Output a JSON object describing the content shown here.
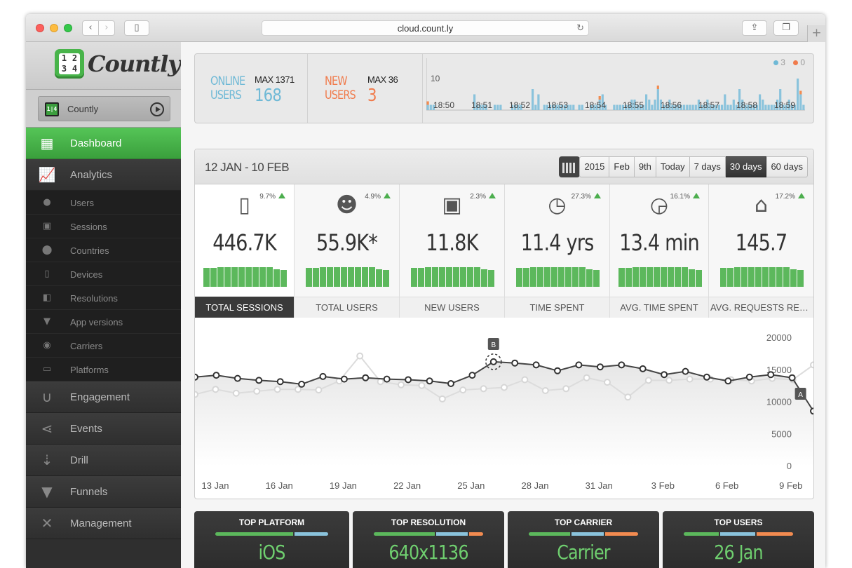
{
  "browser": {
    "url": "cloud.count.ly"
  },
  "sidebar": {
    "logo_text": "Countly",
    "logo_digits": [
      "1",
      "2",
      "3",
      "4"
    ],
    "app_name": "Countly",
    "nav": [
      {
        "label": "Dashboard",
        "icon": "dashboard-icon",
        "active": true
      },
      {
        "label": "Analytics",
        "icon": "analytics-icon"
      },
      {
        "label": "Users",
        "icon": "user-icon",
        "sub": true
      },
      {
        "label": "Sessions",
        "icon": "session-icon",
        "sub": true
      },
      {
        "label": "Countries",
        "icon": "map-pin-icon",
        "sub": true
      },
      {
        "label": "Devices",
        "icon": "device-icon",
        "sub": true
      },
      {
        "label": "Resolutions",
        "icon": "resolution-icon",
        "sub": true
      },
      {
        "label": "App versions",
        "icon": "app-version-icon",
        "sub": true
      },
      {
        "label": "Carriers",
        "icon": "antenna-icon",
        "sub": true
      },
      {
        "label": "Platforms",
        "icon": "platform-icon",
        "sub": true
      },
      {
        "label": "Engagement",
        "icon": "magnet-icon"
      },
      {
        "label": "Events",
        "icon": "share-icon"
      },
      {
        "label": "Drill",
        "icon": "sort-icon"
      },
      {
        "label": "Funnels",
        "icon": "funnel-icon"
      },
      {
        "label": "Management",
        "icon": "tools-icon"
      }
    ]
  },
  "live": {
    "online_label_1": "ONLINE",
    "online_label_2": "USERS",
    "online_max": "MAX 1371",
    "online_value": "168",
    "new_label_1": "NEW",
    "new_label_2": "USERS",
    "new_max": "MAX 36",
    "new_value": "3",
    "legend_online": "3",
    "legend_new": "0",
    "y_tick": "10",
    "times": [
      "18:50",
      "18:51",
      "18:52",
      "18:53",
      "18:54",
      "18:55",
      "18:56",
      "18:57",
      "18:58",
      "18:59"
    ],
    "online_bars": [
      1,
      1,
      1,
      0,
      0,
      0,
      0,
      0,
      0,
      0,
      0,
      0,
      0,
      0,
      0,
      0,
      3,
      1,
      1,
      1,
      1,
      0,
      0,
      1,
      1,
      1,
      0,
      0,
      0,
      1,
      1,
      1,
      1,
      0,
      0,
      0,
      4,
      1,
      3,
      0,
      1,
      1,
      1,
      1,
      1,
      1,
      1,
      1,
      1,
      1,
      1,
      0,
      1,
      1,
      0,
      0,
      1,
      1,
      1,
      2,
      3,
      1,
      0,
      0,
      1,
      1,
      1,
      1,
      1,
      1,
      2,
      2,
      1,
      1,
      1,
      3,
      2,
      1,
      2,
      4,
      2,
      1,
      1,
      2,
      1,
      1,
      1,
      1,
      1,
      1,
      1,
      1,
      1,
      2,
      1,
      1,
      2,
      1,
      1,
      1,
      1,
      1,
      3,
      1,
      1,
      2,
      1,
      4,
      2,
      1,
      1,
      1,
      1,
      1,
      3,
      2,
      1,
      1,
      1,
      1,
      2,
      4,
      1,
      1,
      2,
      1,
      1,
      6,
      3,
      1
    ],
    "new_bars": [
      1,
      0,
      0,
      0,
      0,
      0,
      0,
      0,
      0,
      0,
      0,
      0,
      0,
      0,
      0,
      0,
      0,
      0,
      0,
      0,
      0,
      0,
      0,
      0,
      0,
      0,
      0,
      0,
      0,
      0,
      0,
      0,
      0,
      0,
      0,
      0,
      0,
      0,
      0,
      0,
      0,
      0,
      0,
      0,
      0,
      0,
      0,
      0,
      0,
      0,
      0,
      0,
      0,
      0,
      0,
      0,
      0,
      0,
      0,
      1,
      0,
      0,
      0,
      0,
      0,
      0,
      0,
      0,
      0,
      0,
      0,
      0,
      0,
      0,
      0,
      0,
      0,
      0,
      0,
      1,
      0,
      0,
      0,
      0,
      0,
      0,
      0,
      0,
      0,
      0,
      0,
      0,
      0,
      0,
      0,
      0,
      0,
      0,
      0,
      0,
      0,
      0,
      0,
      0,
      0,
      0,
      0,
      0,
      0,
      0,
      0,
      0,
      0,
      0,
      0,
      0,
      0,
      0,
      0,
      0,
      0,
      0,
      0,
      0,
      0,
      0,
      0,
      0,
      1,
      0
    ]
  },
  "panel": {
    "date_range": "12 JAN - 10 FEB",
    "periods": [
      "2015",
      "Feb",
      "9th",
      "Today",
      "7 days",
      "30 days",
      "60 days"
    ],
    "active_period": "30 days",
    "tiles": [
      {
        "label": "TOTAL SESSIONS",
        "value": "446.7K",
        "trend": "9.7%",
        "icon": "phone-icon",
        "active": true
      },
      {
        "label": "TOTAL USERS",
        "value": "55.9K*",
        "trend": "4.9%",
        "icon": "users-icon"
      },
      {
        "label": "NEW USERS",
        "value": "11.8K",
        "trend": "2.3%",
        "icon": "new-user-icon"
      },
      {
        "label": "TIME SPENT",
        "value": "11.4 yrs",
        "trend": "27.3%",
        "icon": "clock-icon"
      },
      {
        "label": "AVG. TIME SPENT",
        "value": "13.4 min",
        "trend": "16.1%",
        "icon": "clock-refresh-icon"
      },
      {
        "label": "AVG. REQUESTS RECEI...",
        "value": "145.7",
        "trend": "17.2%",
        "icon": "bell-icon"
      }
    ]
  },
  "chart_data": {
    "type": "line",
    "x_labels": [
      "13 Jan",
      "16 Jan",
      "19 Jan",
      "22 Jan",
      "25 Jan",
      "28 Jan",
      "31 Jan",
      "3 Feb",
      "6 Feb",
      "9 Feb"
    ],
    "y_ticks": [
      "20000",
      "15000",
      "10000",
      "5000",
      "0"
    ],
    "ylim": [
      0,
      20000
    ],
    "grid": false,
    "markers": [
      "A",
      "B"
    ],
    "series": [
      {
        "values": [
          13900,
          14200,
          13700,
          13400,
          13200,
          12800,
          14000,
          13600,
          13800,
          13600,
          13500,
          13300,
          12900,
          14200,
          16300,
          16100,
          15800,
          14900,
          15800,
          15500,
          15800,
          15200,
          14300,
          14800,
          13900,
          13300,
          13900,
          14300,
          13800,
          8600
        ]
      },
      {
        "values": [
          11200,
          12000,
          11400,
          11700,
          12000,
          12000,
          11900,
          13300,
          17200,
          13200,
          12700,
          12600,
          10500,
          11900,
          12100,
          12300,
          13500,
          11800,
          12100,
          13800,
          13100,
          10800,
          13400,
          13400,
          13600,
          13600,
          13500,
          13300,
          13700,
          13500,
          15800
        ]
      }
    ]
  },
  "bottom": [
    {
      "title": "TOP PLATFORM",
      "value": "iOS",
      "segments": [
        70,
        30
      ]
    },
    {
      "title": "TOP RESOLUTION",
      "value": "640x1136",
      "segments": [
        57,
        30,
        13
      ]
    },
    {
      "title": "TOP CARRIER",
      "value": "Carrier",
      "segments": [
        39,
        30,
        31
      ]
    },
    {
      "title": "TOP USERS",
      "value": "26 Jan",
      "segments": [
        33,
        33,
        34
      ]
    }
  ],
  "colors": {
    "green": "#5cb85c",
    "blue": "#8ac3dc",
    "orange": "#f28b50",
    "online": "#6fb9d6",
    "new": "#f07b4c"
  }
}
